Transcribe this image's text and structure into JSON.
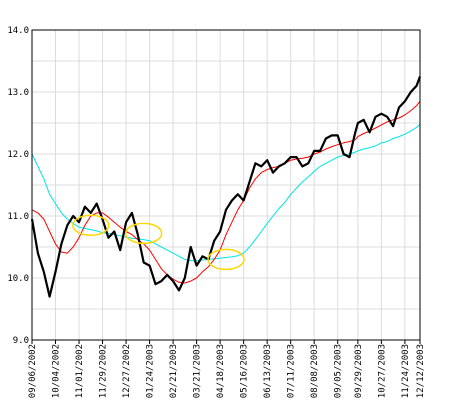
{
  "chart_data": {
    "type": "line",
    "title": "",
    "xlabel": "",
    "ylabel": "",
    "ylim": [
      9.0,
      14.0
    ],
    "grid": true,
    "yticks": [
      "9.0",
      "10.0",
      "11.0",
      "12.0",
      "13.0",
      "14.0"
    ],
    "xtick_labels": [
      "09/06/2002",
      "10/04/2002",
      "11/01/2002",
      "11/29/2002",
      "12/27/2002",
      "01/24/2003",
      "02/21/2003",
      "03/21/2003",
      "04/18/2003",
      "05/16/2003",
      "06/13/2003",
      "07/11/2003",
      "08/08/2003",
      "09/05/2003",
      "09/29/2003",
      "10/27/2003",
      "11/24/2003",
      "12/12/2003"
    ],
    "x": [
      "2002-09-06",
      "2002-09-13",
      "2002-09-20",
      "2002-09-27",
      "2002-10-04",
      "2002-10-11",
      "2002-10-18",
      "2002-10-25",
      "2002-11-01",
      "2002-11-08",
      "2002-11-15",
      "2002-11-22",
      "2002-11-29",
      "2002-12-06",
      "2002-12-13",
      "2002-12-20",
      "2002-12-27",
      "2003-01-03",
      "2003-01-10",
      "2003-01-17",
      "2003-01-24",
      "2003-01-31",
      "2003-02-07",
      "2003-02-14",
      "2003-02-21",
      "2003-02-28",
      "2003-03-07",
      "2003-03-14",
      "2003-03-21",
      "2003-03-28",
      "2003-04-04",
      "2003-04-11",
      "2003-04-18",
      "2003-04-25",
      "2003-05-02",
      "2003-05-09",
      "2003-05-16",
      "2003-05-23",
      "2003-05-30",
      "2003-06-06",
      "2003-06-13",
      "2003-06-20",
      "2003-06-27",
      "2003-07-04",
      "2003-07-11",
      "2003-07-18",
      "2003-07-25",
      "2003-08-01",
      "2003-08-08",
      "2003-08-15",
      "2003-08-22",
      "2003-08-29",
      "2003-09-05",
      "2003-09-12",
      "2003-09-19",
      "2003-09-26",
      "2003-09-29",
      "2003-10-06",
      "2003-10-13",
      "2003-10-20",
      "2003-10-27",
      "2003-11-03",
      "2003-11-10",
      "2003-11-17",
      "2003-11-24",
      "2003-12-01",
      "2003-12-08",
      "2003-12-12"
    ],
    "series": [
      {
        "color": "#000000",
        "values": [
          10.95,
          10.4,
          10.1,
          9.7,
          10.1,
          10.55,
          10.85,
          11.0,
          10.9,
          11.15,
          11.05,
          11.2,
          10.95,
          10.65,
          10.75,
          10.45,
          10.9,
          11.05,
          10.7,
          10.25,
          10.2,
          9.9,
          9.95,
          10.05,
          9.95,
          9.8,
          10.0,
          10.5,
          10.2,
          10.35,
          10.3,
          10.6,
          10.75,
          11.1,
          11.25,
          11.35,
          11.25,
          11.55,
          11.85,
          11.8,
          11.9,
          11.7,
          11.8,
          11.85,
          11.95,
          11.95,
          11.8,
          11.85,
          12.05,
          12.05,
          12.25,
          12.3,
          12.3,
          12.0,
          11.95,
          12.35,
          12.5,
          12.55,
          12.35,
          12.6,
          12.65,
          12.6,
          12.45,
          12.75,
          12.85,
          13.0,
          13.1,
          13.25
        ]
      },
      {
        "color": "#ff0000",
        "values": [
          11.1,
          11.05,
          10.95,
          10.75,
          10.55,
          10.42,
          10.4,
          10.5,
          10.65,
          10.85,
          11.0,
          11.05,
          11.05,
          10.98,
          10.9,
          10.82,
          10.75,
          10.7,
          10.62,
          10.55,
          10.45,
          10.3,
          10.15,
          10.05,
          9.98,
          9.93,
          9.92,
          9.95,
          10.0,
          10.1,
          10.18,
          10.3,
          10.45,
          10.7,
          10.9,
          11.1,
          11.25,
          11.45,
          11.6,
          11.7,
          11.75,
          11.78,
          11.8,
          11.85,
          11.9,
          11.92,
          11.93,
          11.95,
          12.0,
          12.03,
          12.08,
          12.12,
          12.15,
          12.18,
          12.2,
          12.23,
          12.28,
          12.33,
          12.37,
          12.42,
          12.47,
          12.52,
          12.55,
          12.58,
          12.63,
          12.7,
          12.78,
          12.85
        ]
      },
      {
        "color": "#00e5e5",
        "values": [
          12.0,
          11.8,
          11.6,
          11.35,
          11.2,
          11.05,
          10.95,
          10.88,
          10.82,
          10.8,
          10.78,
          10.76,
          10.73,
          10.72,
          10.7,
          10.68,
          10.66,
          10.64,
          10.63,
          10.62,
          10.6,
          10.55,
          10.5,
          10.45,
          10.4,
          10.35,
          10.3,
          10.28,
          10.28,
          10.29,
          10.3,
          10.31,
          10.32,
          10.33,
          10.34,
          10.36,
          10.4,
          10.5,
          10.62,
          10.75,
          10.88,
          11.0,
          11.12,
          11.22,
          11.35,
          11.45,
          11.55,
          11.63,
          11.72,
          11.8,
          11.85,
          11.9,
          11.95,
          11.98,
          12.0,
          12.03,
          12.05,
          12.08,
          12.1,
          12.13,
          12.18,
          12.2,
          12.25,
          12.28,
          12.32,
          12.37,
          12.43,
          12.48
        ]
      }
    ],
    "highlights": [
      {
        "color": "#ffd700",
        "center": [
          "2002-11-15",
          10.85
        ]
      },
      {
        "color": "#ffd700",
        "center": [
          "2003-01-17",
          10.72
        ]
      },
      {
        "color": "#ffd700",
        "center": [
          "2003-04-25",
          10.3
        ]
      }
    ]
  }
}
